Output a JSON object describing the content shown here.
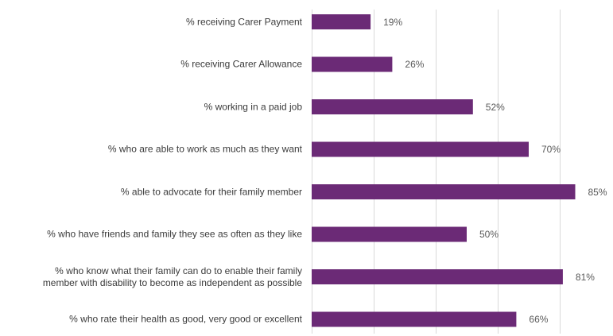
{
  "chart_data": {
    "type": "bar",
    "orientation": "horizontal",
    "title": "",
    "xlabel": "",
    "ylabel": "",
    "categories": [
      "% receiving Carer Payment",
      "% receiving Carer Allowance",
      "% working in a paid job",
      "% who are able to work as much as they want",
      "% able to advocate for their family member",
      "% who have friends and family they see as often as they like",
      "%  who know what their family can do to enable their family member with disability to become as independent as possible",
      "% who rate their health as good, very good or excellent"
    ],
    "category_lines": [
      [
        "% receiving Carer Payment"
      ],
      [
        "% receiving Carer Allowance"
      ],
      [
        "% working in a paid job"
      ],
      [
        "% who are able to work as much as they want"
      ],
      [
        "% able to advocate for their family member"
      ],
      [
        "% who have friends and family they see as often as they like"
      ],
      [
        "%  who know what their family can do to enable their family",
        "member with disability to become as independent as possible"
      ],
      [
        "% who rate their health as good, very good or excellent"
      ]
    ],
    "values": [
      19,
      26,
      52,
      70,
      85,
      50,
      81,
      66
    ],
    "data_labels": [
      "19%",
      "26%",
      "52%",
      "70%",
      "85%",
      "50%",
      "81%",
      "66%"
    ],
    "xlim": [
      0,
      100
    ],
    "gridlines": [
      0,
      20,
      40,
      60,
      80,
      100
    ],
    "grid": true,
    "legend": "none",
    "bar_color": "#6b2a76",
    "grid_color": "#d9d9d9",
    "label_color": "#3a3a3a",
    "value_color": "#595959"
  }
}
